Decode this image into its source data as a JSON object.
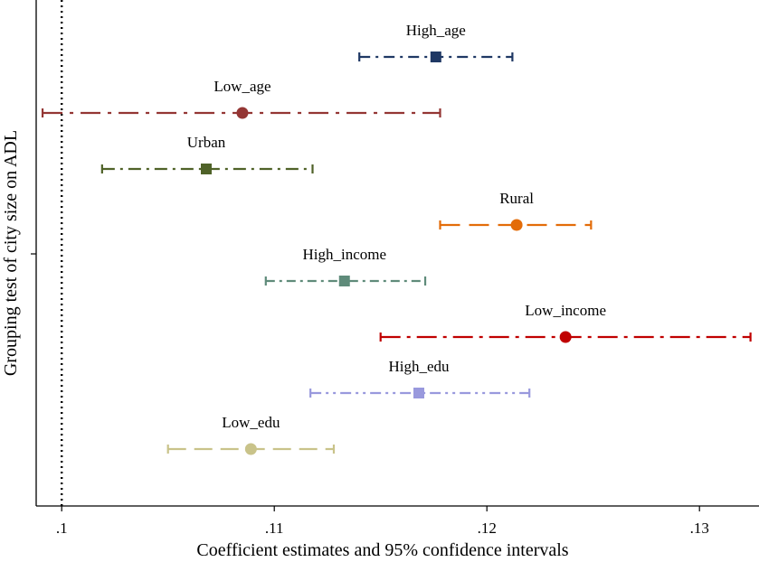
{
  "chart_data": {
    "type": "scatter",
    "subtype": "coefficient-plot-with-confidence-intervals",
    "xlabel": "Coefficient estimates and 95% confidence intervals",
    "ylabel": "Grouping test of city size on ADL",
    "xlim": [
      0.0988,
      0.1328
    ],
    "x_ticks": [
      0.1,
      0.11,
      0.12,
      0.13
    ],
    "x_tick_labels": [
      ".1",
      ".11",
      ".12",
      ".13"
    ],
    "reference_line": 0.1,
    "reference_line_style": "dotted",
    "grid": false,
    "legend": "none",
    "series": [
      {
        "name": "High_age",
        "estimate": 0.1176,
        "ci": [
          0.114,
          0.1212
        ],
        "marker": "square",
        "color": "#1f3864",
        "dash": "12,6,3,6"
      },
      {
        "name": "Low_age",
        "estimate": 0.1085,
        "ci": [
          0.0991,
          0.1178
        ],
        "marker": "circle",
        "color": "#943634",
        "dash": "22,8,4,8"
      },
      {
        "name": "Urban",
        "estimate": 0.1068,
        "ci": [
          0.1019,
          0.1118
        ],
        "marker": "square",
        "color": "#4f6228",
        "dash": "14,6,3,6"
      },
      {
        "name": "Rural",
        "estimate": 0.1214,
        "ci": [
          0.1178,
          0.1249
        ],
        "marker": "circle",
        "color": "#e36c09",
        "dash": "22,10"
      },
      {
        "name": "High_income",
        "estimate": 0.1133,
        "ci": [
          0.1096,
          0.1171
        ],
        "marker": "square",
        "color": "#5f8b7a",
        "dash": "10,5,3,5"
      },
      {
        "name": "Low_income",
        "estimate": 0.1237,
        "ci": [
          0.115,
          0.1324
        ],
        "marker": "circle",
        "color": "#c00000",
        "dash": "22,7,4,7"
      },
      {
        "name": "High_edu",
        "estimate": 0.1168,
        "ci": [
          0.1117,
          0.122
        ],
        "marker": "square",
        "color": "#9999dd",
        "dash": "12,5,3,5,3,5"
      },
      {
        "name": "Low_edu",
        "estimate": 0.1089,
        "ci": [
          0.105,
          0.1128
        ],
        "marker": "circle",
        "color": "#c9c38a",
        "dash": "20,9"
      }
    ]
  }
}
